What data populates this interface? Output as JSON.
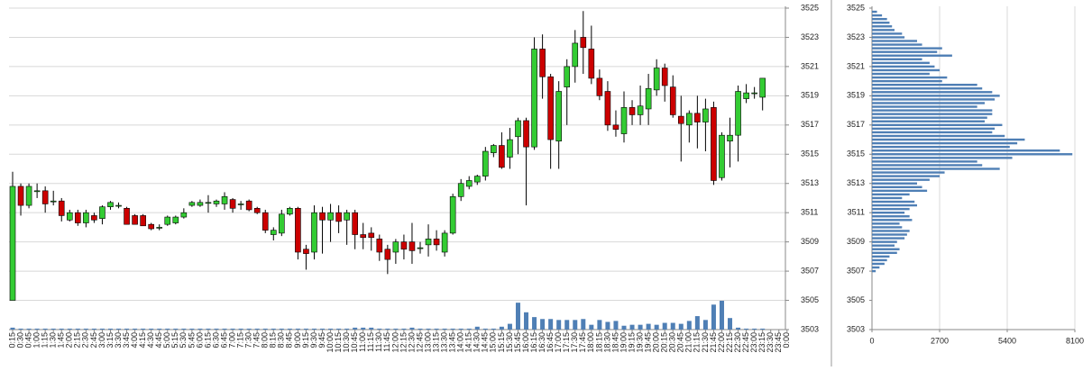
{
  "chart_data": [
    {
      "type": "candlestick",
      "categories": [
        "0:15",
        "0:30",
        "0:45",
        "1:00",
        "1:15",
        "1:30",
        "1:45",
        "2:00",
        "2:15",
        "2:30",
        "2:45",
        "3:00",
        "3:15",
        "3:30",
        "3:45",
        "4:00",
        "4:15",
        "4:30",
        "4:45",
        "5:00",
        "5:15",
        "5:30",
        "5:45",
        "6:00",
        "6:15",
        "6:30",
        "6:45",
        "7:00",
        "7:15",
        "7:30",
        "7:45",
        "8:00",
        "8:15",
        "8:30",
        "8:45",
        "9:00",
        "9:15",
        "9:30",
        "9:45",
        "10:00",
        "10:15",
        "10:30",
        "10:45",
        "11:00",
        "11:15",
        "11:30",
        "11:45",
        "12:00",
        "12:15",
        "12:30",
        "12:45",
        "13:00",
        "13:15",
        "13:30",
        "13:45",
        "14:00",
        "14:15",
        "14:30",
        "14:45",
        "15:00",
        "15:15",
        "15:30",
        "15:45",
        "16:00",
        "16:15",
        "16:30",
        "16:45",
        "17:00",
        "17:15",
        "17:30",
        "17:45",
        "18:00",
        "18:15",
        "18:30",
        "18:45",
        "19:00",
        "19:15",
        "19:30",
        "19:45",
        "20:00",
        "20:15",
        "20:30",
        "20:45",
        "21:00",
        "21:15",
        "21:30",
        "21:45",
        "22:00",
        "22:15",
        "22:30",
        "22:45",
        "23:00",
        "23:15",
        "23:30",
        "23:45",
        "0:00"
      ],
      "open": [
        3505,
        3512.8,
        3511.5,
        3512.5,
        3512.5,
        3511.8,
        3511.8,
        3510.5,
        3511,
        3510.3,
        3510.8,
        3510.6,
        3511.4,
        3511.5,
        3511.3,
        3510.8,
        3510.8,
        3510.2,
        3510,
        3510.2,
        3510.3,
        3510.7,
        3511.5,
        3511.5,
        3511.7,
        3511.6,
        3511.6,
        3511.9,
        3511.6,
        3511.8,
        3511.3,
        3511,
        3509.5,
        3509.6,
        3510.9,
        3511.3,
        3508.5,
        3508.3,
        3511,
        3510.5,
        3511,
        3510.5,
        3511,
        3509.5,
        3509.6,
        3509.2,
        3508.5,
        3508.3,
        3509,
        3509,
        3508.6,
        3508.8,
        3509.2,
        3508.3,
        3509.6,
        3512.1,
        3512.8,
        3513.1,
        3513.5,
        3515.1,
        3515.6,
        3514.8,
        3516.2,
        3517.3,
        3515.5,
        3522.2,
        3520.3,
        3515.9,
        3519.6,
        3521,
        3523,
        3522.2,
        3520.2,
        3519.3,
        3517,
        3516.4,
        3518.2,
        3517.7,
        3518.1,
        3519.4,
        3520.9,
        3519.6,
        3517.6,
        3517,
        3517.8,
        3517.2,
        3518.2,
        3513.4,
        3515.9,
        3516.3,
        3518.8,
        3519.2,
        3518.9,
        null,
        null,
        null
      ],
      "high": [
        3513.8,
        3513,
        3513,
        3513,
        3512.8,
        3512.5,
        3512,
        3511.2,
        3511.2,
        3511.2,
        3511,
        3511.5,
        3511.8,
        3511.7,
        3511.4,
        3510.9,
        3510.9,
        3510.3,
        3510.2,
        3510.8,
        3510.8,
        3511.3,
        3511.8,
        3511.9,
        3512.2,
        3511.9,
        3512.4,
        3512,
        3511.8,
        3511.9,
        3511.4,
        3511.2,
        3510,
        3511.2,
        3511.4,
        3511.4,
        3508.8,
        3511.5,
        3511.4,
        3511.6,
        3511.5,
        3511.2,
        3511.2,
        3510.3,
        3510,
        3509.5,
        3508.8,
        3509.2,
        3509.5,
        3510.3,
        3509,
        3510.2,
        3509.8,
        3509.8,
        3512.3,
        3513.3,
        3513.5,
        3513.6,
        3515.5,
        3515.7,
        3516.5,
        3516.8,
        3517.5,
        3517.5,
        3523,
        3523.2,
        3520.5,
        3520,
        3521.5,
        3523.5,
        3524.8,
        3523.8,
        3520.8,
        3520,
        3518,
        3519.3,
        3518.7,
        3519.7,
        3520.5,
        3521.5,
        3521.2,
        3520.4,
        3519,
        3518,
        3519,
        3518.8,
        3518.6,
        3516.5,
        3517.5,
        3519.7,
        3519.8,
        3519.6,
        3520.2,
        null,
        null,
        null
      ],
      "low": [
        3505,
        3510.8,
        3511.3,
        3512,
        3511,
        3511.5,
        3510.4,
        3510.4,
        3510.1,
        3510,
        3510.3,
        3510.2,
        3511.2,
        3511.3,
        3510.2,
        3510.2,
        3510.1,
        3509.8,
        3509.8,
        3510.1,
        3510.2,
        3510.6,
        3511.4,
        3511.4,
        3511,
        3511.4,
        3511.2,
        3511,
        3511.2,
        3511.1,
        3510.9,
        3509.6,
        3509.1,
        3509.4,
        3510.8,
        3507.8,
        3507.1,
        3507.8,
        3508.2,
        3509,
        3509.6,
        3508.8,
        3508.5,
        3508.5,
        3508.4,
        3507.7,
        3506.8,
        3507.5,
        3507.8,
        3507.5,
        3508.2,
        3508,
        3508.4,
        3508,
        3509.5,
        3511.8,
        3512.6,
        3512.9,
        3513.2,
        3514.8,
        3514,
        3514,
        3515,
        3511.5,
        3515.3,
        3518.8,
        3514,
        3514,
        3517,
        3519.9,
        3520.5,
        3519.8,
        3518.7,
        3516.6,
        3516.2,
        3515.8,
        3517,
        3517,
        3517,
        3519,
        3518.6,
        3517.5,
        3514.5,
        3515.8,
        3515.4,
        3515.2,
        3512.9,
        3513.2,
        3514.1,
        3514.5,
        3518.5,
        3518.8,
        3518,
        null,
        null,
        null
      ],
      "close": [
        3512.8,
        3511.5,
        3512.8,
        3512.5,
        3511.6,
        3511.8,
        3510.8,
        3511,
        3510.3,
        3511,
        3510.5,
        3511.4,
        3511.7,
        3511.5,
        3510.2,
        3510.2,
        3510.1,
        3509.9,
        3510,
        3510.7,
        3510.7,
        3511,
        3511.7,
        3511.7,
        3511.7,
        3511.8,
        3512.1,
        3511.3,
        3511.6,
        3511.2,
        3511,
        3509.8,
        3509.8,
        3510.9,
        3511.3,
        3508.3,
        3508.2,
        3511,
        3510.5,
        3511,
        3510.4,
        3511,
        3509.5,
        3509.3,
        3509.3,
        3508.3,
        3507.8,
        3509,
        3508.5,
        3508.4,
        3508.6,
        3509.2,
        3508.8,
        3509.6,
        3512.1,
        3513,
        3513.2,
        3513.5,
        3515.2,
        3515.6,
        3514.1,
        3516,
        3517.3,
        3515.5,
        3522.2,
        3520.3,
        3516,
        3519.3,
        3521,
        3522.6,
        3522.3,
        3520.2,
        3519,
        3517,
        3516.7,
        3518.2,
        3517.7,
        3518.3,
        3519.5,
        3520.9,
        3519.7,
        3517.7,
        3517.1,
        3517.8,
        3517.2,
        3518.1,
        3513.2,
        3516.3,
        3516.3,
        3519.3,
        3519.2,
        3519.2,
        3520.2,
        null,
        null,
        null
      ],
      "volume": [
        2,
        1,
        1,
        1,
        1,
        1,
        1,
        1,
        1,
        1,
        1,
        1,
        1,
        1,
        1,
        1,
        1,
        1,
        1,
        1,
        1,
        1,
        1,
        1,
        1,
        1,
        1,
        1,
        1,
        1,
        1,
        1,
        1,
        1,
        1,
        1,
        1,
        1,
        1,
        1,
        1,
        1,
        2,
        2,
        2,
        1,
        1,
        1,
        1,
        2,
        1,
        1,
        1,
        1,
        1,
        1,
        1,
        3,
        1,
        1,
        3,
        6,
        28,
        18,
        13,
        11,
        11,
        10,
        10,
        10,
        11,
        5,
        10,
        8,
        9,
        4,
        5,
        5,
        6,
        5,
        7,
        7,
        6,
        9,
        14,
        10,
        26,
        30,
        12,
        2,
        1,
        1,
        1,
        null,
        null,
        null
      ],
      "up_color": "#33cc33",
      "down_color": "#cc0000",
      "volume_color": "#4f7fb5",
      "ylim": [
        3503,
        3525
      ],
      "yticks": [
        3503,
        3505,
        3507,
        3509,
        3511,
        3513,
        3515,
        3517,
        3519,
        3521,
        3523,
        3525
      ],
      "grid": true
    },
    {
      "type": "volume-profile",
      "y": [
        3507,
        3507.25,
        3507.5,
        3507.75,
        3508,
        3508.25,
        3508.5,
        3508.75,
        3509,
        3509.25,
        3509.5,
        3509.75,
        3510,
        3510.25,
        3510.5,
        3510.75,
        3511,
        3511.25,
        3511.5,
        3511.75,
        3512,
        3512.25,
        3512.5,
        3512.75,
        3513,
        3513.25,
        3513.5,
        3513.75,
        3514,
        3514.25,
        3514.5,
        3514.75,
        3515,
        3515.25,
        3515.5,
        3515.75,
        3516,
        3516.25,
        3516.5,
        3516.75,
        3517,
        3517.25,
        3517.5,
        3517.75,
        3518,
        3518.25,
        3518.5,
        3518.75,
        3519,
        3519.25,
        3519.5,
        3519.75,
        3520,
        3520.25,
        3520.5,
        3520.75,
        3521,
        3521.25,
        3521.5,
        3521.75,
        3522,
        3522.25,
        3522.5,
        3522.75,
        3523,
        3523.25,
        3523.5,
        3523.75,
        3524,
        3524.25,
        3524.5,
        3524.75
      ],
      "values": [
        150,
        300,
        500,
        600,
        700,
        1000,
        1100,
        900,
        1000,
        1300,
        1400,
        1500,
        1200,
        1100,
        1600,
        1500,
        1300,
        1500,
        1800,
        1700,
        1200,
        1500,
        2200,
        2000,
        1800,
        2300,
        2700,
        2900,
        5100,
        4400,
        4200,
        5600,
        8000,
        7500,
        5500,
        5800,
        6100,
        5300,
        4800,
        4900,
        5200,
        4500,
        4600,
        4800,
        4800,
        4200,
        4500,
        4900,
        5100,
        4800,
        4400,
        4200,
        2800,
        3000,
        2300,
        2700,
        2500,
        2300,
        2000,
        3200,
        2600,
        2800,
        2000,
        1800,
        1300,
        1200,
        900,
        800,
        700,
        600,
        400,
        200
      ],
      "color": "#4f7fb5",
      "xlim": [
        0,
        8100
      ],
      "xticks": [
        0,
        2700,
        5400,
        8100
      ],
      "ylim": [
        3503,
        3525
      ],
      "yticks": [
        3503,
        3505,
        3507,
        3509,
        3511,
        3513,
        3515,
        3517,
        3519,
        3521,
        3523,
        3525
      ],
      "grid": true
    }
  ]
}
